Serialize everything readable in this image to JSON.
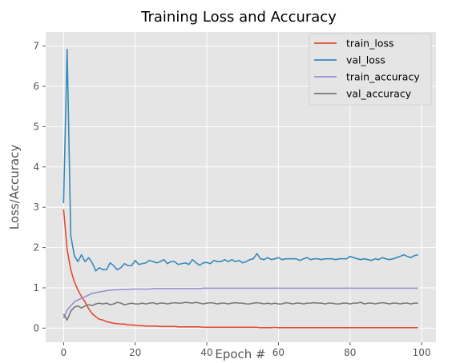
{
  "chart_data": {
    "type": "line",
    "title": "Training Loss and Accuracy",
    "xlabel": "Epoch #",
    "ylabel": "Loss/Accuracy",
    "xlim": [
      -5,
      104
    ],
    "ylim": [
      -0.35,
      7.35
    ],
    "xticks": [
      0,
      20,
      40,
      60,
      80,
      100
    ],
    "yticks": [
      0,
      1,
      2,
      3,
      4,
      5,
      6,
      7
    ],
    "grid": true,
    "legend_position": "top-right",
    "series": [
      {
        "name": "train_loss",
        "color": "#E24A33",
        "values": [
          2.95,
          1.95,
          1.45,
          1.15,
          0.95,
          0.78,
          0.65,
          0.48,
          0.36,
          0.28,
          0.22,
          0.2,
          0.16,
          0.14,
          0.12,
          0.11,
          0.1,
          0.1,
          0.08,
          0.08,
          0.07,
          0.06,
          0.06,
          0.05,
          0.05,
          0.05,
          0.05,
          0.04,
          0.04,
          0.04,
          0.04,
          0.04,
          0.03,
          0.03,
          0.03,
          0.03,
          0.03,
          0.03,
          0.03,
          0.02,
          0.02,
          0.02,
          0.02,
          0.02,
          0.02,
          0.02,
          0.02,
          0.02,
          0.02,
          0.02,
          0.02,
          0.02,
          0.02,
          0.02,
          0.02,
          0.01,
          0.01,
          0.01,
          0.01,
          0.02,
          0.01,
          0.01,
          0.01,
          0.01,
          0.01,
          0.01,
          0.01,
          0.01,
          0.01,
          0.01,
          0.01,
          0.01,
          0.01,
          0.01,
          0.01,
          0.01,
          0.01,
          0.01,
          0.01,
          0.01,
          0.01,
          0.01,
          0.01,
          0.01,
          0.01,
          0.01,
          0.01,
          0.01,
          0.01,
          0.01,
          0.01,
          0.01,
          0.01,
          0.01,
          0.01,
          0.01,
          0.01,
          0.01,
          0.01,
          0.01
        ]
      },
      {
        "name": "val_loss",
        "color": "#348ABD",
        "values": [
          3.1,
          6.92,
          2.3,
          1.8,
          1.65,
          1.82,
          1.65,
          1.75,
          1.62,
          1.42,
          1.5,
          1.45,
          1.45,
          1.62,
          1.55,
          1.45,
          1.5,
          1.6,
          1.55,
          1.55,
          1.68,
          1.58,
          1.6,
          1.62,
          1.68,
          1.65,
          1.62,
          1.65,
          1.7,
          1.6,
          1.65,
          1.65,
          1.58,
          1.6,
          1.62,
          1.58,
          1.7,
          1.62,
          1.56,
          1.62,
          1.63,
          1.6,
          1.68,
          1.65,
          1.65,
          1.7,
          1.65,
          1.7,
          1.65,
          1.68,
          1.62,
          1.65,
          1.7,
          1.72,
          1.85,
          1.72,
          1.7,
          1.75,
          1.7,
          1.72,
          1.75,
          1.7,
          1.72,
          1.72,
          1.72,
          1.72,
          1.68,
          1.72,
          1.75,
          1.7,
          1.72,
          1.72,
          1.7,
          1.72,
          1.72,
          1.72,
          1.7,
          1.72,
          1.72,
          1.72,
          1.78,
          1.75,
          1.72,
          1.7,
          1.72,
          1.7,
          1.68,
          1.72,
          1.7,
          1.75,
          1.72,
          1.7,
          1.72,
          1.75,
          1.78,
          1.82,
          1.78,
          1.75,
          1.8,
          1.82
        ]
      },
      {
        "name": "train_accuracy",
        "color": "#988ED5",
        "values": [
          0.25,
          0.45,
          0.55,
          0.65,
          0.7,
          0.74,
          0.78,
          0.82,
          0.86,
          0.88,
          0.9,
          0.91,
          0.93,
          0.94,
          0.95,
          0.95,
          0.96,
          0.96,
          0.96,
          0.97,
          0.97,
          0.97,
          0.97,
          0.97,
          0.97,
          0.98,
          0.98,
          0.98,
          0.98,
          0.98,
          0.98,
          0.98,
          0.98,
          0.98,
          0.98,
          0.98,
          0.98,
          0.98,
          0.98,
          0.99,
          0.99,
          0.99,
          0.99,
          0.99,
          0.99,
          0.99,
          0.99,
          0.99,
          0.99,
          0.99,
          0.99,
          0.99,
          0.99,
          0.99,
          0.99,
          0.99,
          0.99,
          0.99,
          0.99,
          0.99,
          0.99,
          0.99,
          0.99,
          0.99,
          0.99,
          0.99,
          0.99,
          0.99,
          0.99,
          0.99,
          0.99,
          0.99,
          0.99,
          0.99,
          0.99,
          0.99,
          0.99,
          0.99,
          0.99,
          0.99,
          0.99,
          0.99,
          0.99,
          0.99,
          0.99,
          0.99,
          0.99,
          0.99,
          0.99,
          0.99,
          0.99,
          0.99,
          0.99,
          0.99,
          0.99,
          0.99,
          0.99,
          0.99,
          0.99,
          0.99
        ]
      },
      {
        "name": "val_accuracy",
        "color": "#777777",
        "values": [
          0.35,
          0.2,
          0.42,
          0.52,
          0.55,
          0.5,
          0.55,
          0.58,
          0.56,
          0.6,
          0.62,
          0.6,
          0.62,
          0.58,
          0.6,
          0.64,
          0.62,
          0.58,
          0.6,
          0.62,
          0.6,
          0.6,
          0.62,
          0.6,
          0.62,
          0.63,
          0.6,
          0.62,
          0.62,
          0.6,
          0.62,
          0.63,
          0.62,
          0.62,
          0.64,
          0.63,
          0.62,
          0.64,
          0.62,
          0.6,
          0.62,
          0.63,
          0.62,
          0.6,
          0.62,
          0.62,
          0.6,
          0.62,
          0.63,
          0.62,
          0.62,
          0.6,
          0.6,
          0.62,
          0.63,
          0.62,
          0.6,
          0.62,
          0.6,
          0.62,
          0.6,
          0.6,
          0.63,
          0.62,
          0.6,
          0.62,
          0.62,
          0.6,
          0.62,
          0.62,
          0.63,
          0.62,
          0.62,
          0.6,
          0.62,
          0.62,
          0.6,
          0.6,
          0.62,
          0.62,
          0.6,
          0.62,
          0.62,
          0.64,
          0.6,
          0.62,
          0.62,
          0.6,
          0.62,
          0.63,
          0.62,
          0.6,
          0.62,
          0.62,
          0.6,
          0.62,
          0.62,
          0.6,
          0.62,
          0.62
        ]
      }
    ]
  }
}
